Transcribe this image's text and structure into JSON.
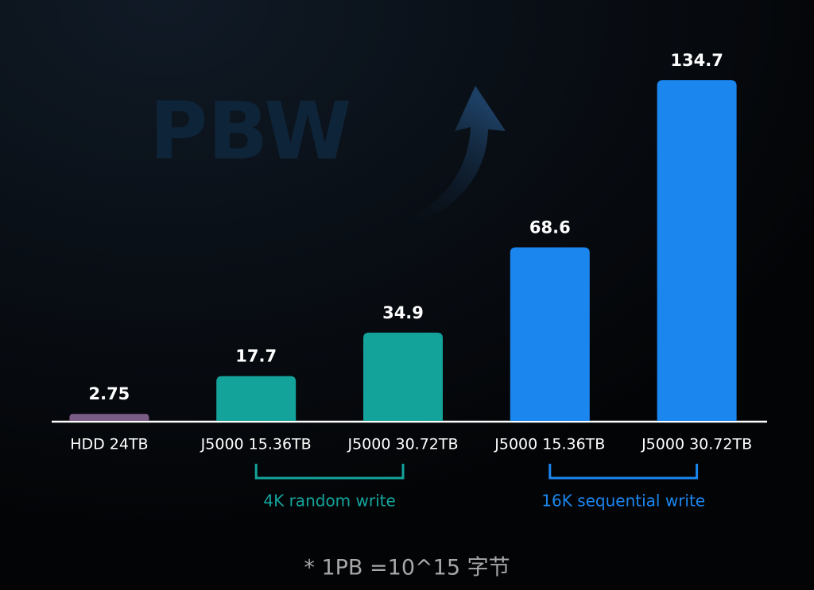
{
  "chart_data": {
    "type": "bar",
    "watermark": "PBW",
    "groups": [
      {
        "label": null,
        "color": "#7b5c86",
        "categories": [
          "HDD 24TB"
        ],
        "values": [
          2.75
        ]
      },
      {
        "label": "4K random write",
        "color": "#14a39b",
        "categories": [
          "J5000 15.36TB",
          "J5000 30.72TB"
        ],
        "values": [
          17.7,
          34.9
        ]
      },
      {
        "label": "16K sequential write",
        "color": "#1b86ee",
        "categories": [
          "J5000 15.36TB",
          "J5000 30.72TB"
        ],
        "values": [
          68.6,
          134.7
        ]
      }
    ],
    "ylim": [
      0,
      135
    ],
    "footnote": "* 1PB =10^15 字节"
  }
}
